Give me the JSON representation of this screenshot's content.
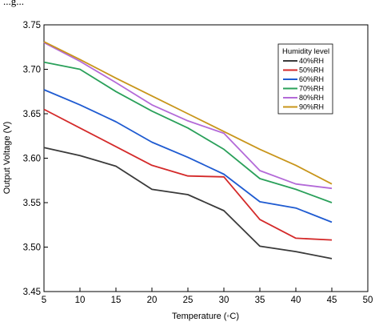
{
  "top_caption": "...g...",
  "chart_data": {
    "type": "line",
    "xlabel": "Temperature (◦C)",
    "ylabel": "Output Voltage (V)",
    "xlim": [
      5,
      50
    ],
    "ylim": [
      3.45,
      3.75
    ],
    "xticks": [
      "5",
      "10",
      "15",
      "20",
      "25",
      "30",
      "35",
      "40",
      "45",
      "50"
    ],
    "yticks": [
      "3.45",
      "3.50",
      "3.55",
      "3.60",
      "3.65",
      "3.70",
      "3.75"
    ],
    "grid": false,
    "legend": {
      "title": "Humidity level",
      "position": "top-right"
    },
    "x": [
      5,
      10,
      15,
      20,
      25,
      30,
      35,
      40,
      45
    ],
    "series": [
      {
        "name": "40%RH",
        "color": "#3a3a3a",
        "values": [
          3.612,
          3.603,
          3.591,
          3.565,
          3.559,
          3.541,
          3.501,
          3.495,
          3.487
        ]
      },
      {
        "name": "50%RH",
        "color": "#d42a2a",
        "values": [
          3.655,
          3.634,
          3.613,
          3.592,
          3.58,
          3.579,
          3.531,
          3.51,
          3.508
        ]
      },
      {
        "name": "60%RH",
        "color": "#1f5bd1",
        "values": [
          3.677,
          3.66,
          3.641,
          3.618,
          3.601,
          3.582,
          3.551,
          3.544,
          3.528
        ]
      },
      {
        "name": "70%RH",
        "color": "#2aa05a",
        "values": [
          3.708,
          3.7,
          3.675,
          3.653,
          3.634,
          3.61,
          3.577,
          3.565,
          3.55
        ]
      },
      {
        "name": "80%RH",
        "color": "#b36ad8",
        "values": [
          3.73,
          3.709,
          3.685,
          3.66,
          3.642,
          3.628,
          3.586,
          3.571,
          3.566
        ]
      },
      {
        "name": "90%RH",
        "color": "#c8951a",
        "values": [
          3.731,
          3.711,
          3.69,
          3.67,
          3.65,
          3.63,
          3.61,
          3.592,
          3.571
        ]
      }
    ]
  }
}
